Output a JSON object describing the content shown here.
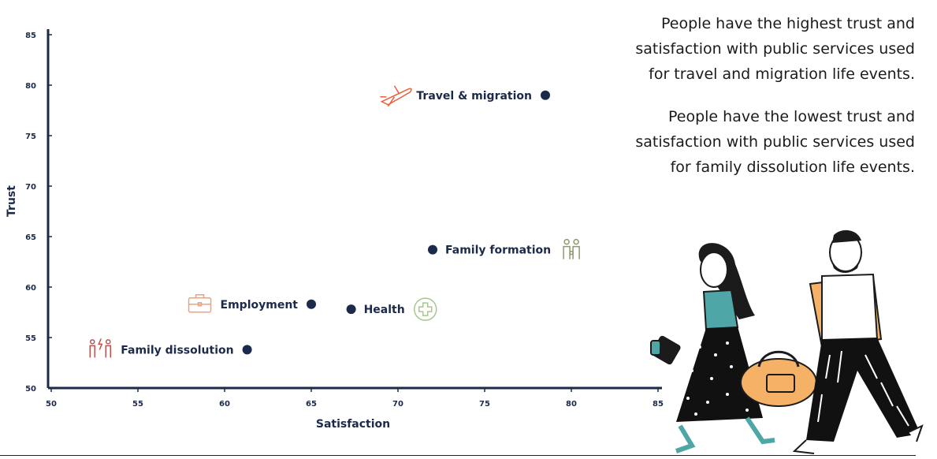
{
  "chart_data": {
    "type": "scatter",
    "xlabel": "Satisfaction",
    "ylabel": "Trust",
    "xlim": [
      50,
      85
    ],
    "ylim": [
      50,
      85
    ],
    "xticks": [
      "50",
      "55",
      "60",
      "65",
      "70",
      "75",
      "80",
      "85"
    ],
    "yticks": [
      "50",
      "55",
      "60",
      "65",
      "70",
      "75",
      "80",
      "85"
    ],
    "grid": false,
    "points": [
      {
        "label": "Travel & migration",
        "x": 78.5,
        "y": 79.0,
        "icon": "airplane-icon",
        "icon_color": "#e8603c",
        "label_side": "left"
      },
      {
        "label": "Family formation",
        "x": 72.0,
        "y": 63.7,
        "icon": "family-icon",
        "icon_color": "#8c9a6e",
        "label_side": "right"
      },
      {
        "label": "Employment",
        "x": 65.0,
        "y": 58.3,
        "icon": "briefcase-icon",
        "icon_color": "#f0a07a",
        "label_side": "left"
      },
      {
        "label": "Health",
        "x": 67.3,
        "y": 57.8,
        "icon": "medical-cross-icon",
        "icon_color": "#a8c78f",
        "label_side": "right"
      },
      {
        "label": "Family dissolution",
        "x": 61.3,
        "y": 53.8,
        "icon": "separation-icon",
        "icon_color": "#c0504d",
        "label_side": "left"
      }
    ],
    "point_color": "#1b2a4a",
    "axis_color": "#1b2a4a"
  },
  "notes": [
    "People have the highest trust and satisfaction with public services used for travel and migration life events.",
    "People have the lowest trust and satisfaction with public services used for family dissolution life events."
  ],
  "illustration": {
    "name": "people-walking-with-luggage",
    "colors": {
      "bag": "#f5b266",
      "shirt": "#4fa6a6",
      "outline": "#1b1b1b"
    }
  }
}
